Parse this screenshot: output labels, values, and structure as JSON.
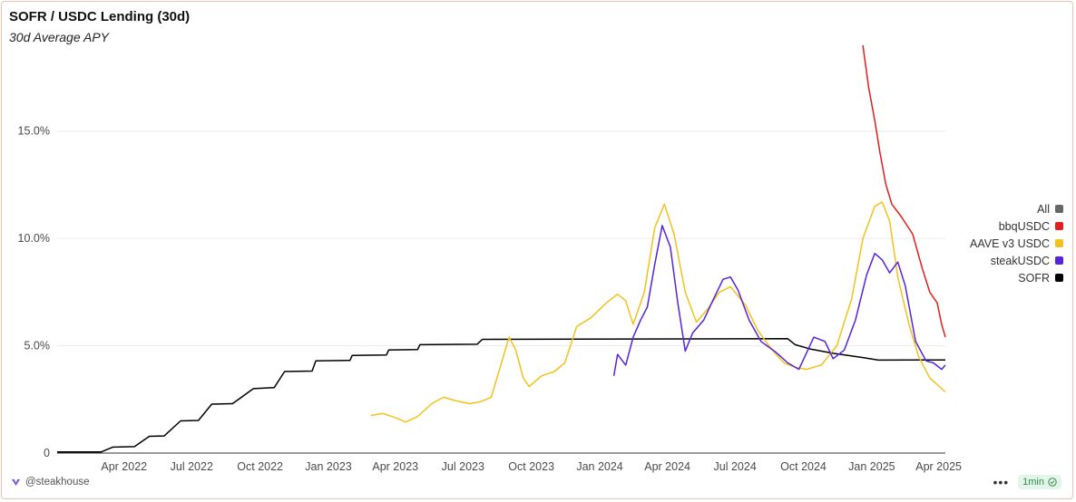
{
  "title": "SOFR / USDC Lending (30d)",
  "subtitle": "30d Average APY",
  "footer": {
    "brand": "@steakhouse",
    "badge": "1min",
    "more_icon": "ellipsis-icon",
    "badge_icon": "check-circle-icon"
  },
  "chart_data": {
    "type": "line",
    "title": "SOFR / USDC Lending (30d)",
    "subtitle": "30d Average APY",
    "x_ticks": [
      "Apr 2022",
      "Jul 2022",
      "Oct 2022",
      "Jan 2023",
      "Apr 2023",
      "Jul 2023",
      "Oct 2023",
      "Jan 2024",
      "Apr 2024",
      "Jul 2024",
      "Oct 2024",
      "Jan 2025",
      "Apr 2025"
    ],
    "x_range": [
      "2022-01-01",
      "2025-04-10"
    ],
    "y_ticks": [
      "0",
      "5.0%",
      "10.0%",
      "15.0%"
    ],
    "ylim": [
      0,
      19
    ],
    "y_unit": "%",
    "grid": "horizontal",
    "legend_position": "right",
    "legend": [
      {
        "name": "All",
        "color": "#666666"
      },
      {
        "name": "bbqUSDC",
        "color": "#e01e1e"
      },
      {
        "name": "AAVE v3 USDC",
        "color": "#f2c21b"
      },
      {
        "name": "steakUSDC",
        "color": "#5523d9"
      },
      {
        "name": "SOFR",
        "color": "#000000"
      }
    ],
    "series": [
      {
        "name": "SOFR",
        "color": "#000000",
        "points": [
          [
            "2022-01-01",
            0.05
          ],
          [
            "2022-03-01",
            0.05
          ],
          [
            "2022-03-17",
            0.28
          ],
          [
            "2022-04-15",
            0.3
          ],
          [
            "2022-05-05",
            0.78
          ],
          [
            "2022-05-25",
            0.8
          ],
          [
            "2022-06-16",
            1.5
          ],
          [
            "2022-07-10",
            1.52
          ],
          [
            "2022-07-28",
            2.28
          ],
          [
            "2022-08-25",
            2.3
          ],
          [
            "2022-09-22",
            3.0
          ],
          [
            "2022-10-20",
            3.05
          ],
          [
            "2022-11-03",
            3.8
          ],
          [
            "2022-12-10",
            3.82
          ],
          [
            "2022-12-15",
            4.3
          ],
          [
            "2023-01-30",
            4.32
          ],
          [
            "2023-02-02",
            4.55
          ],
          [
            "2023-03-20",
            4.57
          ],
          [
            "2023-03-23",
            4.8
          ],
          [
            "2023-05-01",
            4.82
          ],
          [
            "2023-05-04",
            5.05
          ],
          [
            "2023-07-20",
            5.07
          ],
          [
            "2023-07-27",
            5.3
          ],
          [
            "2024-09-10",
            5.33
          ],
          [
            "2024-09-20",
            5.05
          ],
          [
            "2024-10-10",
            4.85
          ],
          [
            "2024-11-10",
            4.65
          ],
          [
            "2024-12-20",
            4.45
          ],
          [
            "2025-01-10",
            4.33
          ],
          [
            "2025-04-10",
            4.34
          ]
        ]
      },
      {
        "name": "AAVE v3 USDC",
        "color": "#f2c21b",
        "points": [
          [
            "2023-02-27",
            1.75
          ],
          [
            "2023-03-15",
            1.85
          ],
          [
            "2023-04-01",
            1.65
          ],
          [
            "2023-04-15",
            1.45
          ],
          [
            "2023-05-01",
            1.7
          ],
          [
            "2023-05-20",
            2.3
          ],
          [
            "2023-06-05",
            2.6
          ],
          [
            "2023-06-20",
            2.45
          ],
          [
            "2023-07-10",
            2.3
          ],
          [
            "2023-07-25",
            2.4
          ],
          [
            "2023-08-08",
            2.6
          ],
          [
            "2023-08-20",
            4.0
          ],
          [
            "2023-09-01",
            5.4
          ],
          [
            "2023-09-10",
            4.8
          ],
          [
            "2023-09-20",
            3.5
          ],
          [
            "2023-09-28",
            3.1
          ],
          [
            "2023-10-15",
            3.6
          ],
          [
            "2023-11-01",
            3.8
          ],
          [
            "2023-11-15",
            4.2
          ],
          [
            "2023-12-01",
            5.9
          ],
          [
            "2023-12-20",
            6.3
          ],
          [
            "2024-01-10",
            7.0
          ],
          [
            "2024-01-25",
            7.4
          ],
          [
            "2024-02-05",
            7.1
          ],
          [
            "2024-02-15",
            6.0
          ],
          [
            "2024-03-01",
            7.5
          ],
          [
            "2024-03-15",
            10.5
          ],
          [
            "2024-03-28",
            11.6
          ],
          [
            "2024-04-10",
            10.2
          ],
          [
            "2024-04-25",
            7.5
          ],
          [
            "2024-05-10",
            6.1
          ],
          [
            "2024-05-25",
            6.7
          ],
          [
            "2024-06-10",
            7.5
          ],
          [
            "2024-06-25",
            7.75
          ],
          [
            "2024-07-15",
            6.9
          ],
          [
            "2024-08-01",
            5.7
          ],
          [
            "2024-08-20",
            4.8
          ],
          [
            "2024-09-05",
            4.2
          ],
          [
            "2024-09-20",
            4.0
          ],
          [
            "2024-10-05",
            3.9
          ],
          [
            "2024-10-25",
            4.1
          ],
          [
            "2024-11-15",
            5.0
          ],
          [
            "2024-12-05",
            7.2
          ],
          [
            "2024-12-20",
            10.0
          ],
          [
            "2025-01-05",
            11.5
          ],
          [
            "2025-01-15",
            11.7
          ],
          [
            "2025-01-25",
            10.8
          ],
          [
            "2025-02-05",
            8.2
          ],
          [
            "2025-02-20",
            6.0
          ],
          [
            "2025-03-05",
            4.5
          ],
          [
            "2025-03-20",
            3.5
          ],
          [
            "2025-04-10",
            2.85
          ]
        ]
      },
      {
        "name": "steakUSDC",
        "color": "#5523d9",
        "points": [
          [
            "2024-01-20",
            3.6
          ],
          [
            "2024-01-25",
            4.6
          ],
          [
            "2024-02-05",
            4.1
          ],
          [
            "2024-02-15",
            5.4
          ],
          [
            "2024-02-25",
            6.2
          ],
          [
            "2024-03-05",
            6.8
          ],
          [
            "2024-03-15",
            8.8
          ],
          [
            "2024-03-25",
            10.6
          ],
          [
            "2024-04-05",
            9.6
          ],
          [
            "2024-04-15",
            7.0
          ],
          [
            "2024-04-25",
            4.75
          ],
          [
            "2024-05-05",
            5.6
          ],
          [
            "2024-05-20",
            6.2
          ],
          [
            "2024-06-01",
            7.1
          ],
          [
            "2024-06-15",
            8.1
          ],
          [
            "2024-06-25",
            8.2
          ],
          [
            "2024-07-05",
            7.6
          ],
          [
            "2024-07-20",
            6.2
          ],
          [
            "2024-08-05",
            5.2
          ],
          [
            "2024-08-25",
            4.7
          ],
          [
            "2024-09-10",
            4.2
          ],
          [
            "2024-09-25",
            3.9
          ],
          [
            "2024-10-15",
            5.4
          ],
          [
            "2024-10-30",
            5.2
          ],
          [
            "2024-11-10",
            4.4
          ],
          [
            "2024-11-25",
            4.8
          ],
          [
            "2024-12-10",
            6.2
          ],
          [
            "2024-12-25",
            8.3
          ],
          [
            "2025-01-05",
            9.3
          ],
          [
            "2025-01-15",
            9.0
          ],
          [
            "2025-01-25",
            8.4
          ],
          [
            "2025-02-05",
            8.9
          ],
          [
            "2025-02-15",
            7.8
          ],
          [
            "2025-03-01",
            5.2
          ],
          [
            "2025-03-15",
            4.3
          ],
          [
            "2025-03-25",
            4.2
          ],
          [
            "2025-04-05",
            3.9
          ],
          [
            "2025-04-10",
            4.1
          ]
        ]
      },
      {
        "name": "bbqUSDC",
        "color": "#e01e1e",
        "points": [
          [
            "2024-12-20",
            19.0
          ],
          [
            "2024-12-28",
            17.0
          ],
          [
            "2025-01-05",
            15.5
          ],
          [
            "2025-01-12",
            14.0
          ],
          [
            "2025-01-20",
            12.5
          ],
          [
            "2025-01-28",
            11.6
          ],
          [
            "2025-02-10",
            11.0
          ],
          [
            "2025-02-25",
            10.2
          ],
          [
            "2025-03-10",
            8.6
          ],
          [
            "2025-03-20",
            7.5
          ],
          [
            "2025-03-30",
            7.0
          ],
          [
            "2025-04-05",
            6.0
          ],
          [
            "2025-04-10",
            5.4
          ]
        ]
      }
    ]
  }
}
